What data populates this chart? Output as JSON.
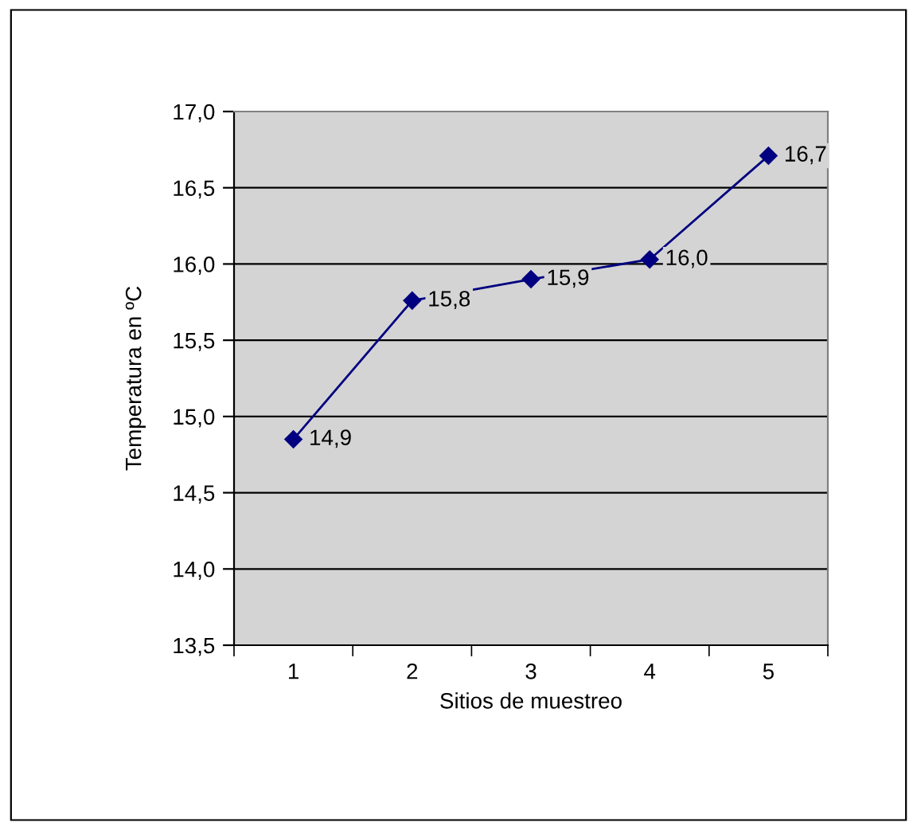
{
  "chart_data": {
    "type": "line",
    "xlabel": "Sitios de muestreo",
    "ylabel": "Temperatura en ºC",
    "categories": [
      "1",
      "2",
      "3",
      "4",
      "5"
    ],
    "series": [
      {
        "color": "#000080",
        "values": [
          14.85,
          15.76,
          15.9,
          16.03,
          16.71
        ],
        "value_labels": [
          "14,9",
          "15,8",
          "15,9",
          "16,0",
          "16,7"
        ]
      }
    ],
    "ylim": [
      13.5,
      17.0
    ],
    "yticks": [
      {
        "value": 13.5,
        "label": "13,5"
      },
      {
        "value": 14.0,
        "label": "14,0"
      },
      {
        "value": 14.5,
        "label": "14,5"
      },
      {
        "value": 15.0,
        "label": "15,0"
      },
      {
        "value": 15.5,
        "label": "15,5"
      },
      {
        "value": 16.0,
        "label": "16,0"
      },
      {
        "value": 16.5,
        "label": "16,5"
      },
      {
        "value": 17.0,
        "label": "17,0"
      }
    ],
    "grid": "y",
    "marker": "diamond",
    "line_style": "solid",
    "legend": false
  }
}
